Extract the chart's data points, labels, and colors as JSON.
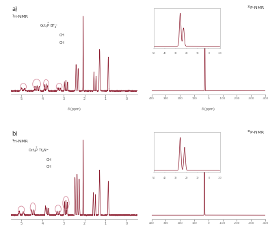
{
  "background": "#ffffff",
  "line_color": "#8B1A2D",
  "line_color_light": "#D4889A",
  "axis_color": "#555555",
  "label_a": "a)",
  "label_b": "b)",
  "h_nmr_label": "¹H-NMR",
  "p_nmr_label": "³¹P-NMR",
  "fig_width": 3.92,
  "fig_height": 3.33
}
